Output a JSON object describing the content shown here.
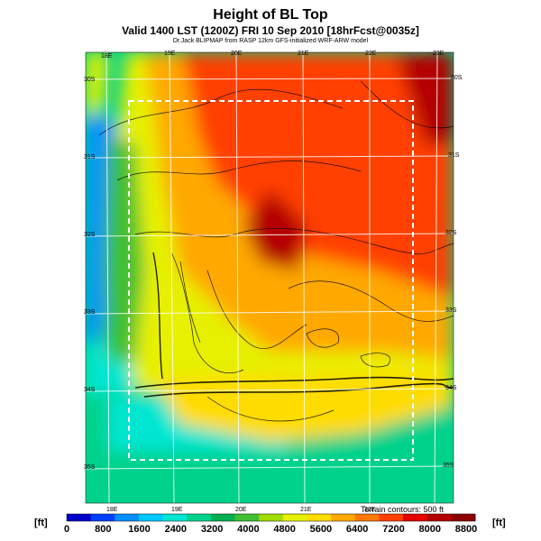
{
  "header": {
    "title": "Height of BL Top",
    "subtitle": "Valid 1400 LST (1200Z) FRI 10 Sep 2010 [18hrFcst@0035z]",
    "credit": "Dr.Jack BLIPMAP from RASP 12km GFS-initialized WRF-ARW model"
  },
  "grid": {
    "lon_labels_top": [
      "18E",
      "19E",
      "20E",
      "21E",
      "22E",
      "23E"
    ],
    "lon_labels_bottom": [
      "18E",
      "19E",
      "20E",
      "21E",
      "22E"
    ],
    "lat_labels_left": [
      "30S",
      "31S",
      "32S",
      "33S",
      "34S",
      "35S"
    ],
    "lat_labels_right": [
      "30S",
      "31S",
      "32S",
      "33S",
      "34S",
      "35S"
    ]
  },
  "terrain_note": "Terrain contours: 500 ft",
  "colorbar": {
    "unit_left": "[ft]",
    "unit_right": "[ft]",
    "tick_labels": [
      "0",
      "800",
      "1600",
      "2400",
      "3200",
      "4000",
      "4800",
      "5600",
      "6400",
      "7200",
      "8000",
      "8800"
    ],
    "colors": [
      "#0000c8",
      "#0040ff",
      "#0090ff",
      "#00c8ff",
      "#00e6d2",
      "#00d28c",
      "#00b050",
      "#40c030",
      "#a0dc00",
      "#e6f000",
      "#ffdc00",
      "#ffa800",
      "#ff7800",
      "#ff4000",
      "#e60000",
      "#b40000",
      "#8c0000"
    ]
  },
  "map_colors": {
    "ocean_low": "#00e6d2",
    "ocean_mid": "#00d28c",
    "coast_blue": "#0090ff",
    "mid_yellow": "#e6f000",
    "orange": "#ffa800",
    "red": "#ff4000",
    "dark_red": "#b40000"
  }
}
